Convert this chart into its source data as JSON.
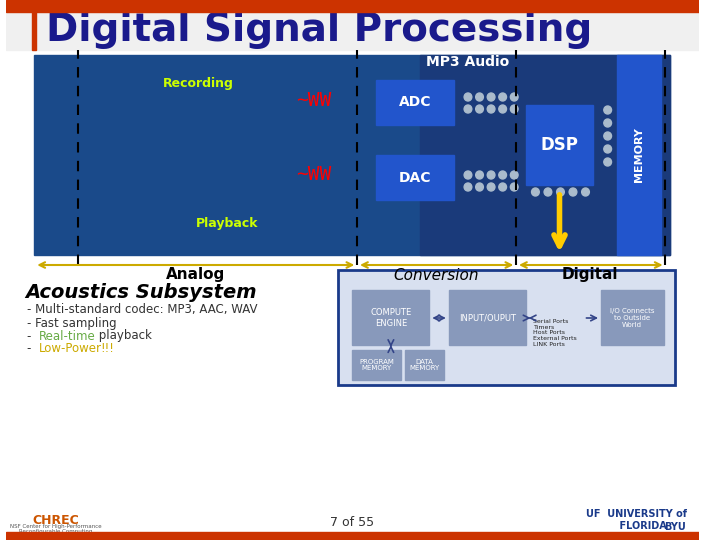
{
  "title": "Digital Signal Processing",
  "title_color": "#1a1a8c",
  "title_fontsize": 28,
  "bg_color": "#ffffff",
  "slide_bg": "#ffffff",
  "top_bar_color": "#cc3300",
  "bottom_bar_color": "#cc3300",
  "dsp_diagram_bg": "#1a4a8a",
  "dsp_diagram_bg2": "#2255aa",
  "section_labels": [
    "Analog",
    "Conversion",
    "Digital"
  ],
  "section_label_fontsize": 11,
  "section_label_fontweight": "bold",
  "mp3_label": "MP3 Audio",
  "mp3_label_color": "#ffffff",
  "recording_label": "Recording",
  "recording_label_color": "#ccff00",
  "playback_label": "Playback",
  "playback_label_color": "#ccff00",
  "adc_label": "ADC",
  "dac_label": "DAC",
  "dsp_label": "DSP",
  "memory_label": "MEMORY",
  "arrow_color": "#ccaa00",
  "dashed_line_color": "#000000",
  "subsystem_title": "Acoustics Subsystem",
  "subsystem_title_fontsize": 14,
  "bullet_items": [
    {
      "text": "- Multi-standard codec: MP3, AAC, WAV",
      "color": "#333333"
    },
    {
      "text_parts": [
        "- ",
        "Real-time",
        " playback"
      ],
      "colors": [
        "#333333",
        "#66aa44",
        "#333333"
      ]
    },
    {
      "text_parts": [
        "- ",
        "Low-Power",
        "!!!"
      ],
      "colors": [
        "#333333",
        "#ccaa00",
        "#333333"
      ]
    },
    {
      "text": "- Fast sampling",
      "color": "#333333"
    }
  ],
  "page_number": "7 of 55",
  "inner_box_border_color": "#1a3a8a",
  "compute_engine_label": "COMPUTE\nENGINE",
  "input_output_label": "INPUT/OUPUT",
  "program_memory_label": "PROGRAM\nMEMORY",
  "data_memory_label": "DATA\nMEMORY",
  "serial_ports_label": "Serial Ports\nTimers\nHost Ports\nExternal Ports\nLINK Ports",
  "io_connects_label": "I/O Connects\nto Outside\nWorld",
  "yellow_arrow_color": "#ffcc00"
}
